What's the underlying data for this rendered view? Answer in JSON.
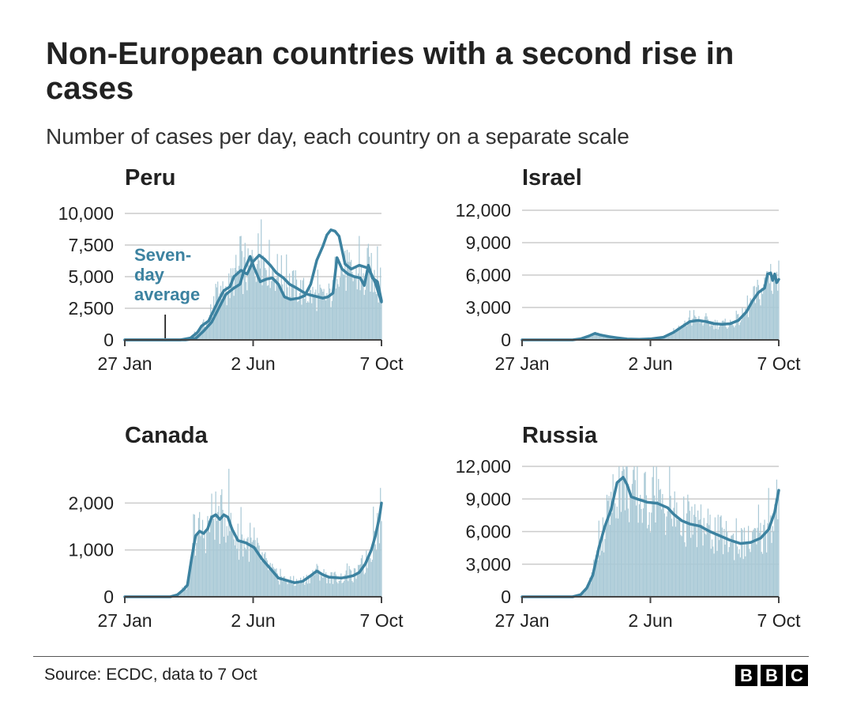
{
  "title": "Non-European countries with a second rise in cases",
  "subtitle": "Number of cases per day, each country on a separate scale",
  "source": "Source: ECDC, data to 7 Oct",
  "logo_letters": [
    "B",
    "B",
    "C"
  ],
  "colors": {
    "line": "#3c82a0",
    "bars": "#a9c9d6",
    "grid": "#cccccc",
    "axis": "#444444",
    "annotation": "#3c82a0",
    "text": "#222222"
  },
  "chart_data": [
    {
      "type": "line",
      "title": "Peru",
      "x_ticks": [
        "27 Jan",
        "2 Jun",
        "7 Oct"
      ],
      "x_range": [
        0,
        254
      ],
      "y_ticks": [
        0,
        2500,
        5000,
        7500,
        10000
      ],
      "y_tick_labels": [
        "0",
        "2,500",
        "5,000",
        "7,500",
        "10,000"
      ],
      "ylim": [
        0,
        10000
      ],
      "annotation": {
        "lines": [
          "Seven-",
          "day",
          "average"
        ],
        "pointer_day": 40
      },
      "series": [
        {
          "name": "Seven-day average",
          "day": [
            0,
            55,
            65,
            72,
            76,
            83,
            92,
            98,
            104,
            108,
            115,
            121,
            127,
            133,
            138,
            144,
            150,
            157,
            163,
            170,
            176,
            181,
            186,
            191,
            196,
            201,
            206,
            210,
            215,
            221,
            227,
            233,
            237,
            241,
            245,
            250,
            254
          ],
          "value": [
            0,
            0,
            150,
            600,
            1100,
            1500,
            3000,
            3900,
            4200,
            5000,
            5500,
            5200,
            6200,
            6700,
            6400,
            5900,
            5300,
            4900,
            4400,
            4100,
            3800,
            3600,
            3500,
            3400,
            3300,
            3400,
            3700,
            6500,
            5600,
            5200,
            5000,
            4900,
            4300,
            5900,
            4900,
            4600,
            3100
          ]
        },
        {
          "name": "Seven-day average (detail)",
          "day": [
            0,
            60,
            70,
            78,
            86,
            93,
            100,
            108,
            114,
            118,
            124,
            128,
            134,
            140,
            146,
            152,
            158,
            164,
            172,
            178,
            184,
            190,
            196,
            200,
            204,
            208,
            212,
            218,
            224,
            232,
            240,
            244,
            248,
            252,
            254
          ],
          "value": [
            0,
            0,
            100,
            700,
            1400,
            2500,
            3600,
            4100,
            4400,
            5500,
            6600,
            5700,
            4600,
            4800,
            4900,
            4400,
            3400,
            3200,
            3300,
            3500,
            4400,
            6300,
            7400,
            8300,
            8700,
            8600,
            8200,
            6000,
            5600,
            5900,
            5700,
            5200,
            4500,
            3500,
            3000
          ]
        }
      ]
    },
    {
      "type": "line",
      "title": "Israel",
      "x_ticks": [
        "27 Jan",
        "2 Jun",
        "7 Oct"
      ],
      "x_range": [
        0,
        254
      ],
      "y_ticks": [
        0,
        3000,
        6000,
        9000,
        12000
      ],
      "y_tick_labels": [
        "0",
        "3,000",
        "6,000",
        "9,000",
        "12,000"
      ],
      "ylim": [
        0,
        12000
      ],
      "series": [
        {
          "name": "Seven-day average",
          "day": [
            0,
            50,
            58,
            66,
            72,
            78,
            86,
            94,
            104,
            116,
            128,
            140,
            150,
            158,
            166,
            174,
            182,
            190,
            198,
            206,
            214,
            222,
            228,
            234,
            240,
            243,
            246,
            248,
            250,
            252,
            254
          ],
          "value": [
            0,
            0,
            100,
            350,
            600,
            450,
            300,
            200,
            80,
            50,
            100,
            250,
            700,
            1200,
            1700,
            1800,
            1700,
            1500,
            1450,
            1500,
            1800,
            2600,
            3600,
            4400,
            4800,
            6100,
            6200,
            5500,
            6100,
            5300,
            5600
          ]
        }
      ]
    },
    {
      "type": "line",
      "title": "Canada",
      "x_ticks": [
        "27 Jan",
        "2 Jun",
        "7 Oct"
      ],
      "x_range": [
        0,
        254
      ],
      "y_ticks": [
        0,
        1000,
        2000
      ],
      "y_tick_labels": [
        "0",
        "1,000",
        "2,000"
      ],
      "ylim": [
        0,
        2900
      ],
      "series": [
        {
          "name": "Seven-day average",
          "day": [
            0,
            45,
            52,
            58,
            62,
            66,
            70,
            74,
            78,
            82,
            86,
            90,
            94,
            98,
            102,
            106,
            112,
            120,
            128,
            136,
            144,
            152,
            160,
            168,
            176,
            184,
            190,
            196,
            202,
            208,
            214,
            220,
            226,
            232,
            238,
            244,
            248,
            252,
            254
          ],
          "value": [
            0,
            0,
            40,
            150,
            250,
            800,
            1300,
            1400,
            1350,
            1450,
            1700,
            1750,
            1650,
            1750,
            1700,
            1450,
            1200,
            1150,
            1050,
            800,
            600,
            400,
            350,
            300,
            330,
            450,
            550,
            470,
            420,
            410,
            400,
            420,
            450,
            520,
            700,
            1000,
            1300,
            1700,
            2000
          ]
        }
      ]
    },
    {
      "type": "line",
      "title": "Russia",
      "x_ticks": [
        "27 Jan",
        "2 Jun",
        "7 Oct"
      ],
      "x_range": [
        0,
        254
      ],
      "y_ticks": [
        0,
        3000,
        6000,
        9000,
        12000
      ],
      "y_tick_labels": [
        "0",
        "3,000",
        "6,000",
        "9,000",
        "12,000"
      ],
      "ylim": [
        0,
        12000
      ],
      "series": [
        {
          "name": "Seven-day average",
          "day": [
            0,
            50,
            58,
            64,
            70,
            76,
            82,
            88,
            94,
            100,
            104,
            108,
            114,
            124,
            134,
            144,
            150,
            158,
            166,
            176,
            186,
            196,
            206,
            216,
            226,
            236,
            244,
            250,
            254
          ],
          "value": [
            0,
            0,
            200,
            800,
            2000,
            4500,
            6500,
            8000,
            10500,
            11000,
            10300,
            9200,
            9000,
            8700,
            8600,
            8200,
            7600,
            7000,
            6700,
            6500,
            6000,
            5600,
            5200,
            4900,
            5000,
            5400,
            6200,
            7800,
            9800
          ]
        }
      ]
    }
  ]
}
